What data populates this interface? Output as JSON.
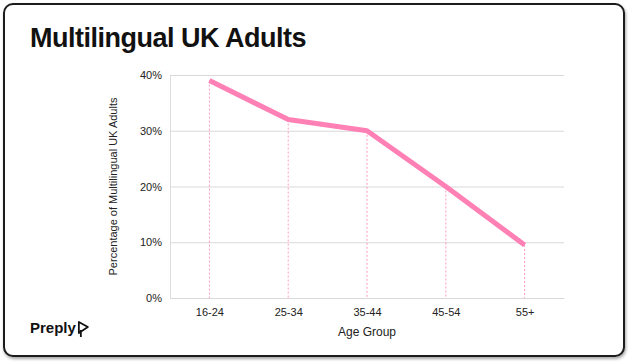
{
  "chart_data": {
    "type": "line",
    "title": "Multilingual UK Adults",
    "x_label": "Age Group",
    "y_label": "Percentage of Multilingual UK Adults",
    "source": "Preply",
    "categories": [
      "16-24",
      "25-34",
      "35-44",
      "45-54",
      "55+"
    ],
    "values": [
      39,
      32,
      30,
      20,
      9.5
    ],
    "color": "#ff80b5",
    "ylim": [
      0,
      40
    ],
    "yticks": [
      {
        "value": 0,
        "label": "0%"
      },
      {
        "value": 10,
        "label": "10%"
      },
      {
        "value": 20,
        "label": "20%"
      },
      {
        "value": 30,
        "label": "30%"
      },
      {
        "value": 40,
        "label": "40%"
      }
    ],
    "grid": true
  }
}
